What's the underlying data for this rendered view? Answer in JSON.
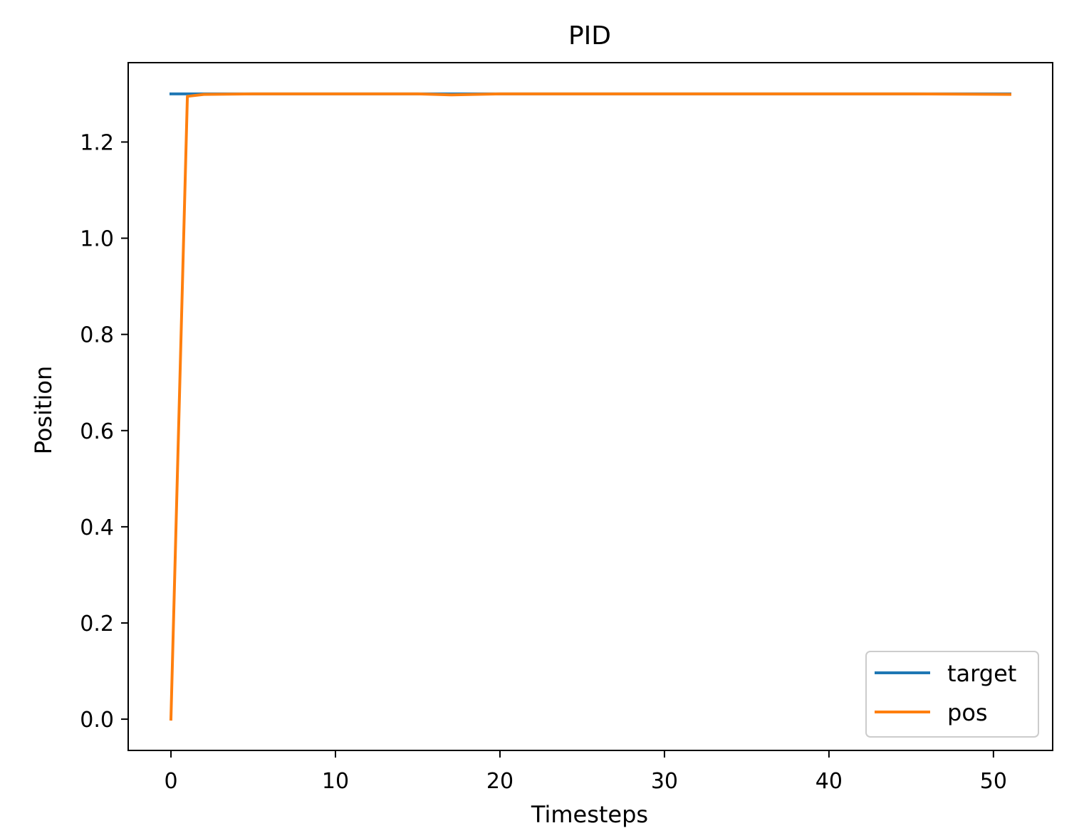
{
  "chart_data": {
    "type": "line",
    "title": "PID",
    "xlabel": "Timesteps",
    "ylabel": "Position",
    "xlim": [
      -2.6,
      53.6
    ],
    "ylim": [
      -0.065,
      1.365
    ],
    "xticks": [
      0,
      10,
      20,
      30,
      40,
      50
    ],
    "yticks": [
      0.0,
      0.2,
      0.4,
      0.6,
      0.8,
      1.0,
      1.2
    ],
    "grid": false,
    "legend_position": "lower-right",
    "series": [
      {
        "name": "target",
        "color": "#1f77b4",
        "x": [
          0,
          51
        ],
        "y": [
          1.3,
          1.3
        ]
      },
      {
        "name": "pos",
        "color": "#ff7f0e",
        "x": [
          0,
          1,
          2,
          5,
          10,
          15,
          17,
          20,
          25,
          30,
          35,
          40,
          45,
          51
        ],
        "y": [
          0.0,
          1.295,
          1.299,
          1.3,
          1.3,
          1.3,
          1.298,
          1.3,
          1.3,
          1.3,
          1.3,
          1.3,
          1.3,
          1.299
        ]
      }
    ]
  }
}
